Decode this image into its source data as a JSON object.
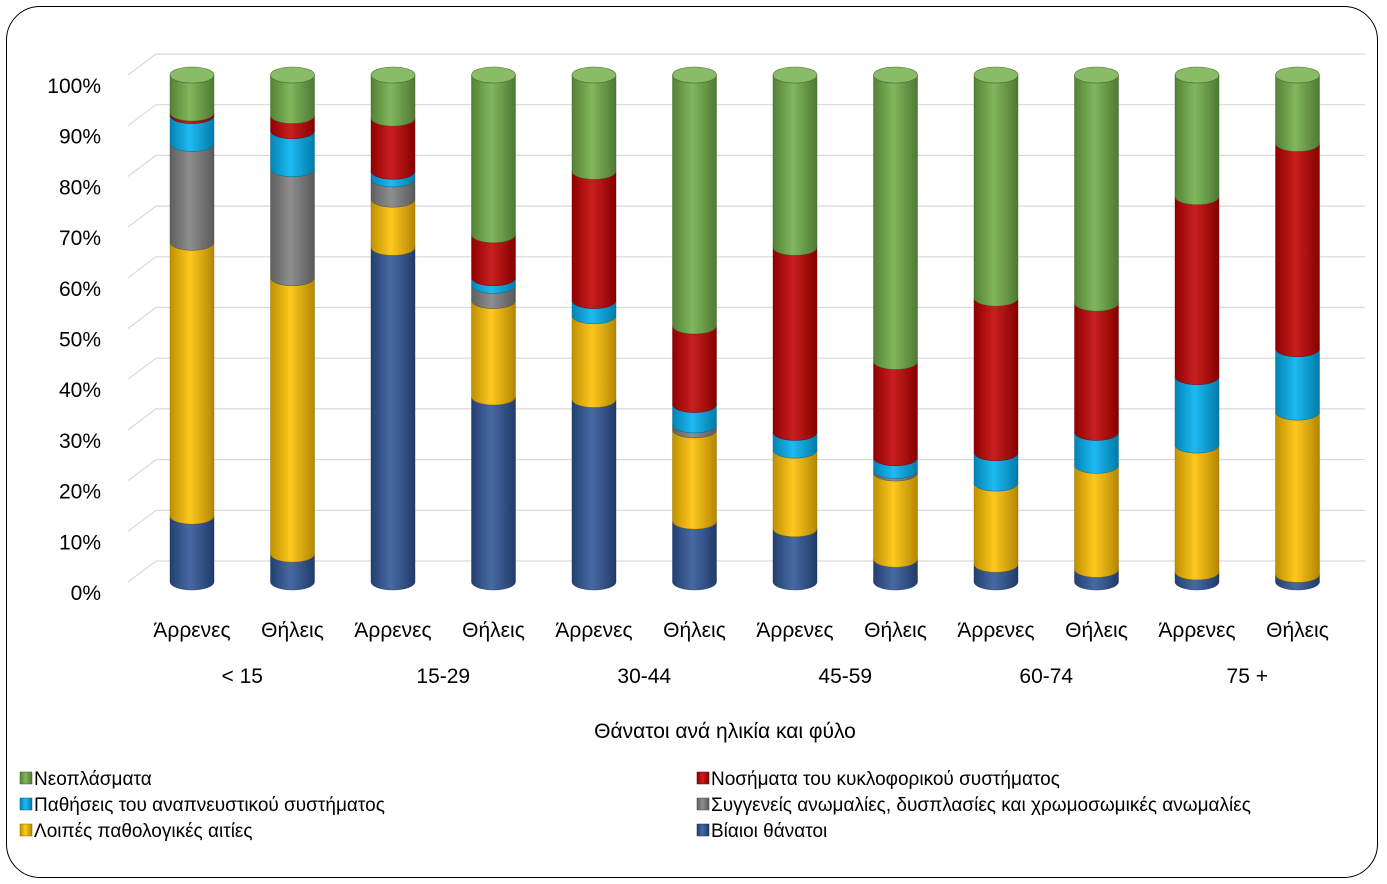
{
  "chart_data": {
    "type": "bar",
    "stacked": true,
    "percent_stacked": true,
    "title": "",
    "xlabel": "Θάνατοι ανά ηλικία και φύλο",
    "ylabel": "",
    "ylim": [
      0,
      100
    ],
    "y_ticks": [
      "0%",
      "10%",
      "20%",
      "30%",
      "40%",
      "50%",
      "60%",
      "70%",
      "80%",
      "90%",
      "100%"
    ],
    "grid": true,
    "legend_position": "bottom",
    "groups": [
      "< 15",
      "15-29",
      "30-44",
      "45-59",
      "60-74",
      "75 +"
    ],
    "categories": [
      "Άρρενες",
      "Θήλεις",
      "Άρρενες",
      "Θήλεις",
      "Άρρενες",
      "Θήλεις",
      "Άρρενες",
      "Θήλεις",
      "Άρρενες",
      "Θήλεις",
      "Άρρενες",
      "Θήλεις"
    ],
    "series": [
      {
        "name": "Βίαιοι θάνατοι",
        "color": "#2E5597",
        "values": [
          13,
          5.5,
          66,
          36.5,
          36,
          12,
          10.5,
          4.5,
          3.5,
          2.5,
          2,
          1.5
        ]
      },
      {
        "name": "Λοιπές παθολογικές αιτίες",
        "color": "#FFC000",
        "values": [
          54,
          54.5,
          9.5,
          19,
          16.5,
          18,
          15.5,
          17,
          16,
          20.5,
          25,
          32
        ]
      },
      {
        "name": "Συγγενείς ανωμαλίες, δυσπλασίες και χρωμοσωμικές ανωμαλίες",
        "color": "#7F7F7F",
        "values": [
          19.5,
          21.5,
          4,
          3,
          0,
          1,
          0,
          0.5,
          0,
          0,
          0,
          0
        ]
      },
      {
        "name": "Παθήσεις του αναπνευστικού συστήματος",
        "color": "#00B0F0",
        "values": [
          5.5,
          7.5,
          1.5,
          1.5,
          3,
          4,
          3.5,
          2.5,
          6,
          6.5,
          13.5,
          12.5
        ]
      },
      {
        "name": "Νοσήματα του κυκλοφορικού συστήματος",
        "color": "#C00000",
        "values": [
          0.5,
          3,
          10.5,
          8.5,
          25.5,
          15.5,
          36.5,
          19,
          30.5,
          25.5,
          35.5,
          40.5
        ]
      },
      {
        "name": "Νεοπλάσματα",
        "color": "#70AD47",
        "values": [
          7.5,
          8,
          8.5,
          31.5,
          19,
          49.5,
          34,
          56.5,
          44,
          45,
          24,
          13.5
        ]
      }
    ],
    "legend_order": [
      "Νεοπλάσματα",
      "Νοσήματα του κυκλοφορικού συστήματος",
      "Παθήσεις του αναπνευστικού συστήματος",
      "Συγγενείς ανωμαλίες, δυσπλασίες και χρωμοσωμικές ανωμαλίες",
      "Λοιπές παθολογικές αιτίες",
      "Βίαιοι θάνατοι"
    ]
  }
}
